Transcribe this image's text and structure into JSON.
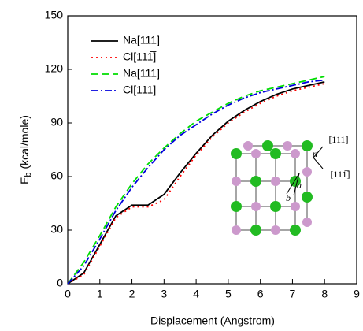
{
  "chart_data": {
    "type": "line",
    "xlabel": "Displacement (Angstrom)",
    "ylabel_parts": [
      "E",
      "b",
      " (kcal/mole)"
    ],
    "x": [
      0,
      0.5,
      1,
      1.5,
      2,
      2.5,
      3,
      3.5,
      4,
      4.5,
      5,
      5.5,
      6,
      6.5,
      7,
      7.5,
      8
    ],
    "series": [
      {
        "name": "Na[111̅]",
        "color": "#000000",
        "dash": "solid",
        "values": [
          0,
          6,
          22,
          38,
          44,
          44,
          50,
          62,
          73,
          83,
          91,
          97,
          102,
          106,
          109,
          111,
          113
        ]
      },
      {
        "name": "Cl[111̅]",
        "color": "#ff0000",
        "dash": "dotted",
        "values": [
          0,
          5,
          21,
          37,
          43,
          43,
          47,
          60,
          72,
          82,
          90,
          96,
          101,
          105,
          108,
          110,
          112
        ]
      },
      {
        "name": "Na[111]",
        "color": "#00dd00",
        "dash": "dashed",
        "values": [
          0,
          12,
          27,
          43,
          56,
          67,
          76,
          84,
          91,
          96,
          101,
          105,
          108,
          110,
          112,
          114,
          116
        ]
      },
      {
        "name": "Cl[111]",
        "color": "#0000dd",
        "dash": "dashdot",
        "values": [
          0,
          10,
          25,
          41,
          54,
          65,
          75,
          83,
          89,
          95,
          100,
          104,
          107,
          109,
          111,
          113,
          114
        ]
      }
    ],
    "xlim": [
      0,
      9
    ],
    "xticks": [
      0,
      1,
      2,
      3,
      4,
      5,
      6,
      7,
      8,
      9
    ],
    "ylim": [
      0,
      150
    ],
    "yticks": [
      0,
      30,
      60,
      90,
      120,
      150
    ],
    "grid": false,
    "legend": "upper-left",
    "annotations": [
      "[111]",
      "n",
      "[111̅]",
      "a",
      "b"
    ]
  }
}
